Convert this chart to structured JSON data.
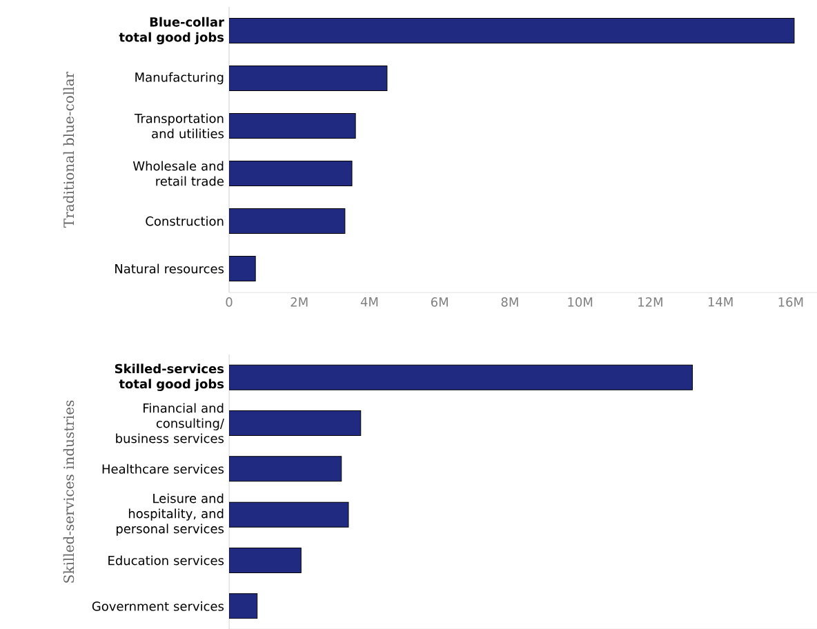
{
  "chart_data": [
    {
      "type": "bar",
      "orientation": "horizontal",
      "ylabel": "Traditional blue-collar",
      "categories": [
        "**Blue-collar total good jobs**",
        "Manufacturing",
        "Transportation and utilities",
        "Wholesale and retail trade",
        "Construction",
        "Natural resources"
      ],
      "values": [
        16.1,
        4.5,
        3.6,
        3.5,
        3.3,
        0.75
      ],
      "color": "#1f2a80",
      "xlim": [
        0,
        16.75
      ],
      "xticks": [
        {
          "value": 0,
          "label": "0"
        },
        {
          "value": 2,
          "label": "2M"
        },
        {
          "value": 4,
          "label": "4M"
        },
        {
          "value": 6,
          "label": "6M"
        },
        {
          "value": 8,
          "label": "8M"
        },
        {
          "value": 10,
          "label": "10M"
        },
        {
          "value": 12,
          "label": "12M"
        },
        {
          "value": 14,
          "label": "14M"
        },
        {
          "value": 16,
          "label": "16M"
        }
      ]
    },
    {
      "type": "bar",
      "orientation": "horizontal",
      "ylabel": "Skilled-services industries",
      "categories": [
        "**Skilled-services total good jobs**",
        "Financial and consulting/ business services",
        "Healthcare services",
        "Leisure and hospitality, and personal services",
        "Education services",
        "Government services"
      ],
      "values": [
        13.2,
        3.75,
        3.2,
        3.4,
        2.05,
        0.8
      ],
      "color": "#1f2a80",
      "xlim": [
        0,
        16.75
      ],
      "tick_labels": "y"
    }
  ]
}
